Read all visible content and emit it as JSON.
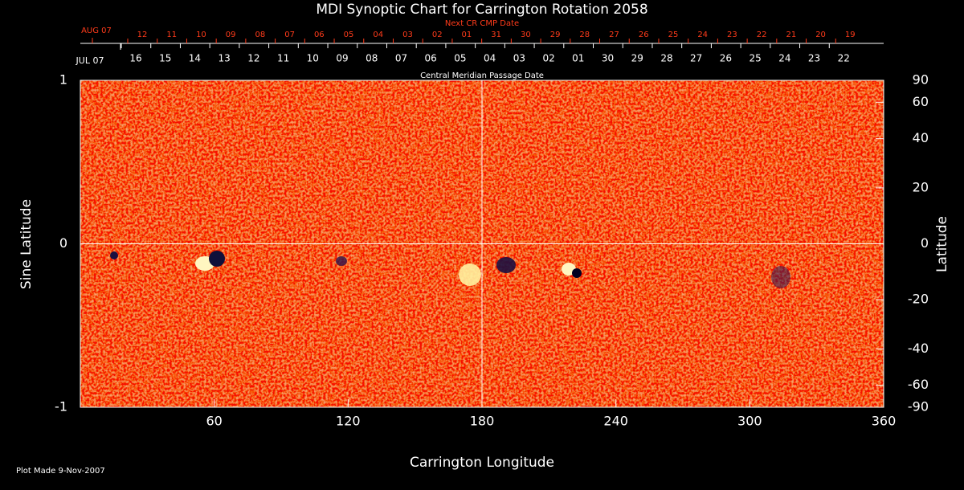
{
  "chart_data": {
    "type": "synoptic-map",
    "title": "MDI Synoptic Chart for Carrington Rotation 2058",
    "x_label": "Carrington Longitude",
    "y_label": "Sine Latitude",
    "y2_label": "Latitude",
    "xlim": [
      0,
      360
    ],
    "xticks": [
      60,
      120,
      180,
      240,
      300,
      360
    ],
    "ylim": [
      -1,
      1
    ],
    "yticks": [
      -1,
      0,
      1
    ],
    "y2lim": [
      -90,
      90
    ],
    "y2scale": "sine",
    "y2ticks": [
      90,
      60,
      40,
      20,
      0,
      -20,
      -40,
      -60,
      -90
    ],
    "crosshair": {
      "x": 180,
      "y": 0
    },
    "date_rows": [
      {
        "title": "Next CR CMP Date",
        "color": "#ff3b1a",
        "start_label": "AUG 07",
        "labels": [
          "12",
          "11",
          "10",
          "09",
          "08",
          "07",
          "06",
          "05",
          "04",
          "03",
          "02",
          "01",
          "31",
          "30",
          "29",
          "28",
          "27",
          "26",
          "25",
          "24",
          "23",
          "22",
          "21",
          "20",
          "19"
        ]
      },
      {
        "title": "Central Meridian Passage Date",
        "color": "#ffffff",
        "start_label": "JUL 07",
        "labels": [
          "16",
          "15",
          "14",
          "13",
          "12",
          "11",
          "10",
          "09",
          "08",
          "07",
          "06",
          "05",
          "04",
          "03",
          "02",
          "01",
          "30",
          "29",
          "28",
          "27",
          "26",
          "25",
          "24",
          "23",
          "22"
        ]
      }
    ],
    "footnote": "Plot Made  9-Nov-2007"
  }
}
